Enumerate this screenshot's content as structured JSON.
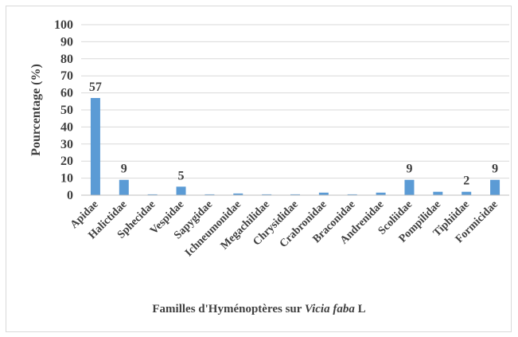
{
  "chart_data": {
    "type": "bar",
    "title": "",
    "xlabel": {
      "prefix": "Familles d'Hyménoptères sur ",
      "italic": "Vicia faba",
      "suffix": " L"
    },
    "ylabel": "Pourcentage (%)",
    "ylim": [
      0,
      100
    ],
    "yticks": [
      0,
      10,
      20,
      30,
      40,
      50,
      60,
      70,
      80,
      90,
      100
    ],
    "grid": true,
    "legend": "none",
    "bar_color": "#5b9bd5",
    "categories": [
      "Apidae",
      "Halictidae",
      "Sphecidae",
      "Vespidae",
      "Sapygidae",
      "Ichneumonidae",
      "Megachilidae",
      "Chrysididae",
      "Crabronidae",
      "Braconidae",
      "Andrenidae",
      "Scoliidae",
      "Pompilidae",
      "Tiphiidae",
      "Formicidae"
    ],
    "values": [
      57,
      9,
      0.5,
      5,
      0.5,
      1,
      0.5,
      0.5,
      1.5,
      0.5,
      1.5,
      9,
      2,
      2,
      9
    ],
    "data_labels": [
      "57",
      "9",
      "",
      "5",
      "",
      "",
      "",
      "",
      "",
      "",
      "",
      "9",
      "",
      "2",
      "9"
    ]
  }
}
